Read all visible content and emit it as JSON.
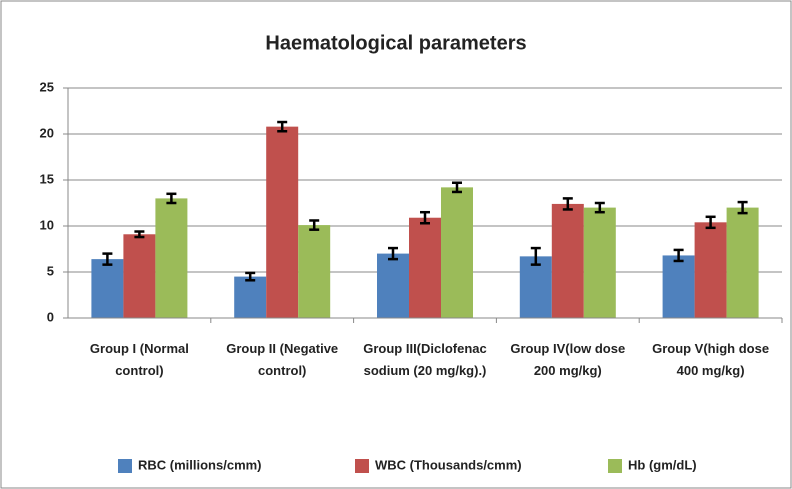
{
  "chart_data": {
    "type": "bar",
    "title": "Haematological parameters",
    "categories": [
      "Group I (Normal control)",
      "Group II (Negative control)",
      "Group III(Diclofenac sodium (20 mg/kg).)",
      "Group IV(low dose 200 mg/kg)",
      "Group V(high dose 400 mg/kg)"
    ],
    "series": [
      {
        "name": "RBC (millions/cmm)",
        "color": "#4f81bd",
        "values": [
          6.4,
          4.5,
          7.0,
          6.7,
          6.8
        ],
        "errors": [
          0.6,
          0.4,
          0.6,
          0.9,
          0.6
        ]
      },
      {
        "name": "WBC (Thousands/cmm)",
        "color": "#c0504d",
        "values": [
          9.1,
          20.8,
          10.9,
          12.4,
          10.4
        ],
        "errors": [
          0.3,
          0.5,
          0.6,
          0.6,
          0.6
        ]
      },
      {
        "name": "Hb (gm/dL)",
        "color": "#9bbb59",
        "values": [
          13.0,
          10.1,
          14.2,
          12.0,
          12.0
        ],
        "errors": [
          0.5,
          0.5,
          0.5,
          0.5,
          0.6
        ]
      }
    ],
    "ylim": [
      0,
      25
    ],
    "yticks": [
      0,
      5,
      10,
      15,
      20,
      25
    ],
    "grid": true,
    "legend": "bottom"
  }
}
